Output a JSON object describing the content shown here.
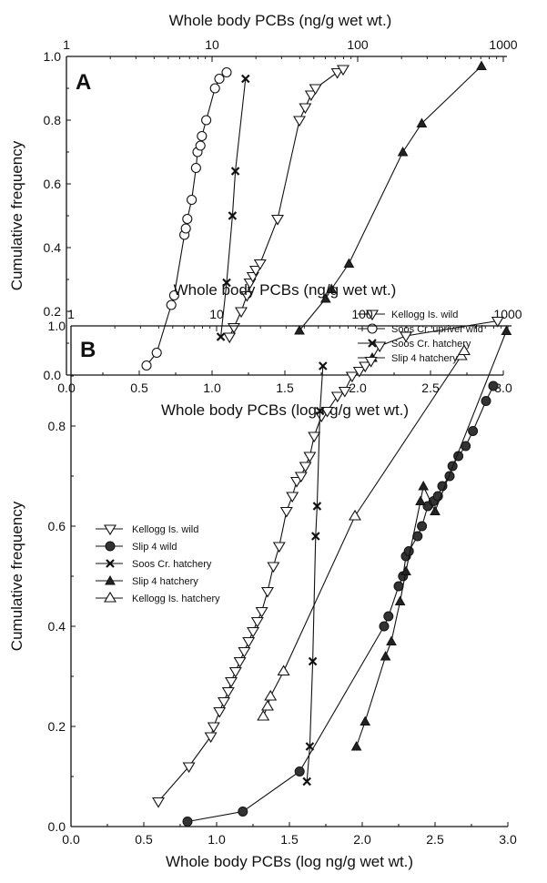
{
  "chart_data": [
    {
      "panel_label": "A",
      "type": "line",
      "title": "",
      "top_axis_label": "Whole body PCBs (ng/g wet wt.)",
      "top_axis_ticks": [
        "1",
        "10",
        "100",
        "1000"
      ],
      "xlabel": "Whole body PCBs (log ng/g wet wt.)",
      "ylabel": "Cumulative frequency",
      "xlim": [
        0.0,
        3.0
      ],
      "ylim": [
        0.0,
        1.0
      ],
      "xticks": [
        "0.0",
        "0.5",
        "1.0",
        "1.5",
        "2.0",
        "2.5",
        "3.0"
      ],
      "yticks": [
        "0.0",
        "0.2",
        "0.4",
        "0.6",
        "0.8",
        "1.0"
      ],
      "grid": false,
      "legend_position": "bottom-right",
      "series": [
        {
          "name": "Kellogg Is. wild",
          "marker": "triangle-down-open",
          "x": [
            1.12,
            1.15,
            1.2,
            1.24,
            1.26,
            1.28,
            1.3,
            1.33,
            1.45,
            1.6,
            1.64,
            1.68,
            1.71,
            1.86,
            1.9
          ],
          "y": [
            0.12,
            0.15,
            0.2,
            0.25,
            0.29,
            0.31,
            0.33,
            0.35,
            0.49,
            0.8,
            0.84,
            0.88,
            0.9,
            0.95,
            0.96
          ]
        },
        {
          "name": "Soos Cr. upriver wild",
          "marker": "circle-open",
          "x": [
            0.55,
            0.62,
            0.72,
            0.74,
            0.81,
            0.82,
            0.83,
            0.86,
            0.89,
            0.9,
            0.92,
            0.93,
            0.96,
            1.02,
            1.05,
            1.1
          ],
          "y": [
            0.03,
            0.07,
            0.22,
            0.25,
            0.44,
            0.46,
            0.49,
            0.55,
            0.65,
            0.7,
            0.72,
            0.75,
            0.8,
            0.9,
            0.93,
            0.95
          ]
        },
        {
          "name": "Soos Cr. hatchery",
          "marker": "x",
          "x": [
            1.06,
            1.1,
            1.14,
            1.16,
            1.23
          ],
          "y": [
            0.12,
            0.29,
            0.5,
            0.64,
            0.93
          ]
        },
        {
          "name": "Slip 4 hatchery",
          "marker": "triangle-up-filled",
          "x": [
            1.6,
            1.78,
            1.82,
            1.94,
            2.31,
            2.44,
            2.85
          ],
          "y": [
            0.14,
            0.24,
            0.27,
            0.35,
            0.7,
            0.79,
            0.97
          ]
        }
      ]
    },
    {
      "panel_label": "B",
      "type": "line",
      "title": "",
      "top_axis_label": "Whole body PCBs (ng/g wet wt.)",
      "top_axis_ticks": [
        "1",
        "10",
        "100",
        "1000"
      ],
      "xlabel": "Whole body PCBs (log ng/g wet wt.)",
      "ylabel": "Cumulative frequency",
      "xlim": [
        0.0,
        3.0
      ],
      "ylim": [
        0.0,
        1.0
      ],
      "xticks": [
        "0.0",
        "0.5",
        "1.0",
        "1.5",
        "2.0",
        "2.5",
        "3.0"
      ],
      "yticks": [
        "0.0",
        "0.2",
        "0.4",
        "0.6",
        "0.8",
        "1.0"
      ],
      "grid": false,
      "legend_position": "top-left",
      "series": [
        {
          "name": "Kellogg Is. wild",
          "marker": "triangle-down-open",
          "x": [
            0.6,
            0.81,
            0.96,
            0.98,
            1.02,
            1.05,
            1.08,
            1.1,
            1.13,
            1.16,
            1.19,
            1.22,
            1.25,
            1.28,
            1.31,
            1.35,
            1.39,
            1.43,
            1.48,
            1.52,
            1.55,
            1.58,
            1.61,
            1.64,
            1.67,
            1.72,
            1.76,
            1.83,
            1.88,
            1.93,
            1.98,
            2.02,
            2.06,
            2.12,
            2.3,
            2.93
          ],
          "y": [
            0.05,
            0.12,
            0.18,
            0.2,
            0.23,
            0.25,
            0.27,
            0.29,
            0.31,
            0.33,
            0.35,
            0.37,
            0.39,
            0.41,
            0.43,
            0.47,
            0.52,
            0.56,
            0.63,
            0.66,
            0.69,
            0.7,
            0.72,
            0.74,
            0.78,
            0.82,
            0.83,
            0.86,
            0.87,
            0.9,
            0.91,
            0.92,
            0.93,
            0.96,
            0.98,
            1.01
          ]
        },
        {
          "name": "Slip 4 wild",
          "marker": "circle-filled",
          "x": [
            0.8,
            1.18,
            1.57,
            2.15,
            2.18,
            2.25,
            2.28,
            2.3,
            2.32,
            2.38,
            2.41,
            2.45,
            2.49,
            2.52,
            2.55,
            2.6,
            2.62,
            2.66,
            2.71,
            2.76,
            2.85,
            2.9
          ],
          "y": [
            0.01,
            0.03,
            0.11,
            0.4,
            0.42,
            0.48,
            0.5,
            0.54,
            0.55,
            0.58,
            0.6,
            0.64,
            0.65,
            0.66,
            0.68,
            0.7,
            0.72,
            0.74,
            0.76,
            0.79,
            0.85,
            0.88
          ]
        },
        {
          "name": "Soos Cr. hatchery",
          "marker": "x",
          "x": [
            1.62,
            1.64,
            1.66,
            1.68,
            1.69,
            1.71,
            1.73
          ],
          "y": [
            0.09,
            0.16,
            0.33,
            0.58,
            0.64,
            0.83,
            0.92
          ]
        },
        {
          "name": "Slip 4 hatchery",
          "marker": "triangle-up-filled",
          "x": [
            1.96,
            2.02,
            2.16,
            2.2,
            2.26,
            2.3,
            2.4,
            2.42,
            2.5,
            2.99
          ],
          "y": [
            0.16,
            0.21,
            0.34,
            0.37,
            0.45,
            0.51,
            0.65,
            0.68,
            0.63,
            0.99
          ]
        },
        {
          "name": "Kellogg Is. hatchery",
          "marker": "triangle-up-open",
          "x": [
            1.32,
            1.35,
            1.37,
            1.46,
            1.95,
            2.68,
            2.7
          ],
          "y": [
            0.22,
            0.24,
            0.26,
            0.31,
            0.62,
            0.94,
            0.95
          ]
        }
      ]
    }
  ]
}
